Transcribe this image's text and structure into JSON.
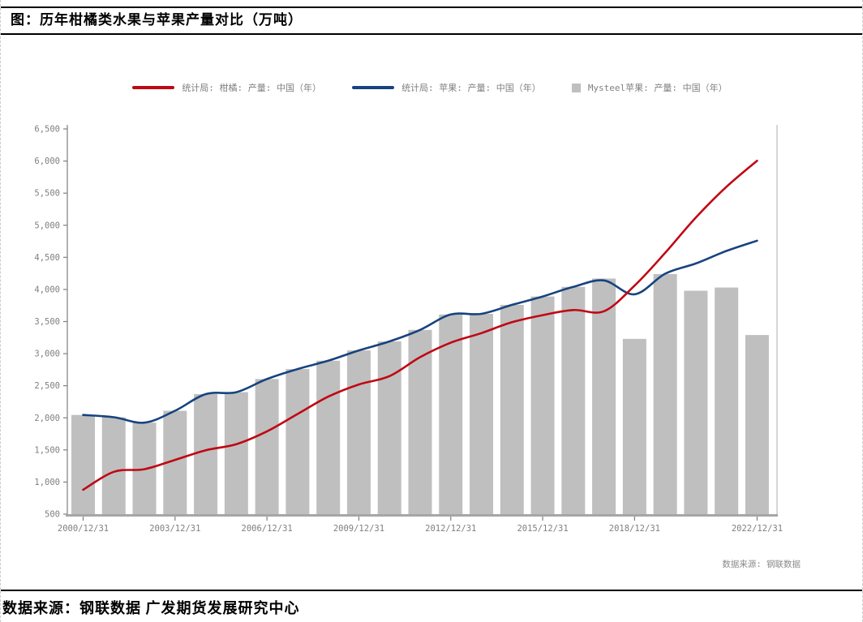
{
  "document": {
    "title": "图：历年柑橘类水果与苹果产量对比（万吨）",
    "footer_source": "数据来源：钢联数据 广发期货发展研究中心",
    "chart_source_note": "数据来源: 钢联数据"
  },
  "legend": {
    "items": [
      {
        "label": "统计局: 柑橘: 产量: 中国（年）",
        "swatch": "line",
        "color": "#c00714"
      },
      {
        "label": "统计局: 苹果: 产量: 中国（年）",
        "swatch": "line",
        "color": "#17437f"
      },
      {
        "label": "Mysteel苹果: 产量: 中国（年）",
        "swatch": "square",
        "color": "#bfbfbf"
      }
    ]
  },
  "chart_data": {
    "type": "combo: bar + 2 smoothed lines",
    "title": "图：历年柑橘类水果与苹果产量对比（万吨）",
    "unit": "万吨",
    "ylim": [
      500,
      6500
    ],
    "grid": "off",
    "legend_position": "top-center",
    "years": [
      2000,
      2001,
      2002,
      2003,
      2004,
      2005,
      2006,
      2007,
      2008,
      2009,
      2010,
      2011,
      2012,
      2013,
      2014,
      2015,
      2016,
      2017,
      2018,
      2019,
      2020,
      2021,
      2022
    ],
    "x_tick_labels": [
      "2000/12/31",
      "2003/12/31",
      "2006/12/31",
      "2009/12/31",
      "2012/12/31",
      "2015/12/31",
      "2018/12/31",
      "2022/12/31"
    ],
    "x_tick_year_indexes": [
      0,
      3,
      6,
      9,
      12,
      15,
      18,
      22
    ],
    "y_ticks": [
      "500",
      "1,000",
      "1,500",
      "2,000",
      "2,500",
      "3,000",
      "3,500",
      "4,000",
      "4,500",
      "5,000",
      "5,500",
      "6,000",
      "6,500"
    ],
    "series": [
      {
        "name": "统计局: 柑橘: 产量: 中国（年）",
        "type": "line",
        "color": "#c00714",
        "values": [
          880,
          1160,
          1200,
          1345,
          1495,
          1590,
          1790,
          2060,
          2330,
          2520,
          2650,
          2945,
          3170,
          3320,
          3490,
          3600,
          3680,
          3660,
          4060,
          4570,
          5120,
          5600,
          6005
        ]
      },
      {
        "name": "统计局: 苹果: 产量: 中国（年）",
        "type": "line",
        "color": "#17437f",
        "values": [
          2045,
          2010,
          1925,
          2110,
          2370,
          2400,
          2605,
          2760,
          2890,
          3050,
          3190,
          3370,
          3610,
          3620,
          3760,
          3890,
          4040,
          4140,
          3925,
          4245,
          4405,
          4600,
          4760
        ]
      },
      {
        "name": "Mysteel苹果: 产量: 中国（年）",
        "type": "bar",
        "color": "#bfbfbf",
        "values": [
          2045,
          2010,
          1925,
          2110,
          2370,
          2400,
          2605,
          2760,
          2890,
          3050,
          3190,
          3370,
          3610,
          3620,
          3760,
          3890,
          4040,
          4170,
          3230,
          4240,
          3980,
          4030,
          3290
        ]
      }
    ],
    "axis_colors": {
      "y_axis": "#7f7f7f",
      "x_axis": "#a6a6a6",
      "right_border": "#c0c0c0",
      "tick_text": "#7f7f7f"
    }
  }
}
